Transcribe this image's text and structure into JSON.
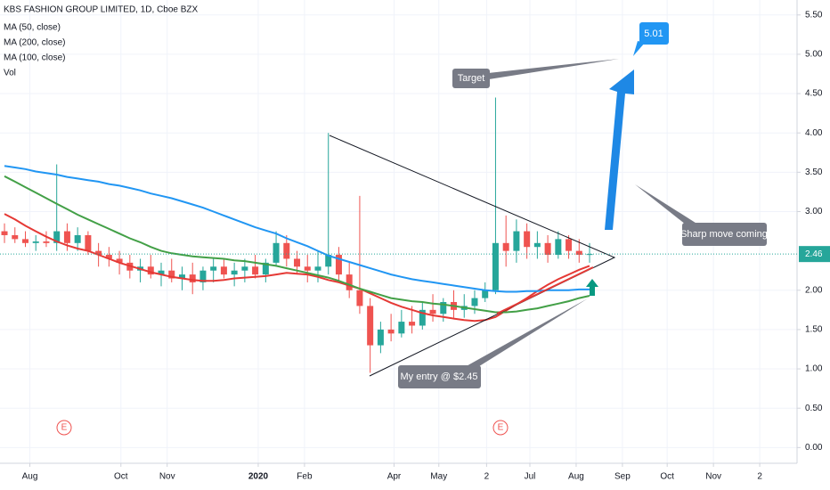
{
  "chart_data": {
    "type": "candlestick",
    "title": "KBS FASHION GROUP LIMITED, 1D, Cboe BZX",
    "indicators": [
      "MA (50, close)",
      "MA (200, close)",
      "MA (100, close)",
      "Vol"
    ],
    "x": [
      "2019-07-15",
      "2019-07-22",
      "2019-07-29",
      "2019-08-05",
      "2019-08-12",
      "2019-08-19",
      "2019-08-26",
      "2019-09-02",
      "2019-09-09",
      "2019-09-16",
      "2019-09-23",
      "2019-09-30",
      "2019-10-07",
      "2019-10-14",
      "2019-10-21",
      "2019-10-28",
      "2019-11-04",
      "2019-11-11",
      "2019-11-18",
      "2019-11-25",
      "2019-12-02",
      "2019-12-09",
      "2019-12-16",
      "2019-12-23",
      "2019-12-30",
      "2020-01-06",
      "2020-01-13",
      "2020-01-20",
      "2020-01-27",
      "2020-02-03",
      "2020-02-10",
      "2020-02-17",
      "2020-02-24",
      "2020-03-02",
      "2020-03-09",
      "2020-03-16",
      "2020-03-23",
      "2020-03-30",
      "2020-04-06",
      "2020-04-13",
      "2020-04-20",
      "2020-04-27",
      "2020-05-04",
      "2020-05-11",
      "2020-05-18",
      "2020-05-25",
      "2020-06-01",
      "2020-06-08",
      "2020-06-15",
      "2020-06-22",
      "2020-06-29",
      "2020-07-06",
      "2020-07-13",
      "2020-07-20",
      "2020-07-27",
      "2020-08-03",
      "2020-08-10"
    ],
    "open": [
      2.75,
      2.7,
      2.65,
      2.6,
      2.62,
      2.6,
      2.75,
      2.6,
      2.7,
      2.5,
      2.45,
      2.4,
      2.35,
      2.25,
      2.3,
      2.2,
      2.25,
      2.15,
      2.2,
      2.1,
      2.25,
      2.3,
      2.2,
      2.25,
      2.3,
      2.2,
      2.35,
      2.6,
      2.4,
      2.3,
      2.25,
      2.3,
      2.45,
      2.2,
      2.0,
      1.8,
      1.3,
      1.5,
      1.45,
      1.6,
      1.55,
      1.75,
      1.7,
      1.85,
      1.75,
      1.8,
      1.9,
      2.0,
      2.6,
      2.5,
      2.75,
      2.55,
      2.6,
      2.45,
      2.65,
      2.5,
      2.45
    ],
    "high": [
      2.85,
      2.8,
      2.75,
      2.7,
      2.75,
      3.6,
      2.85,
      2.8,
      2.75,
      2.6,
      2.55,
      2.5,
      2.45,
      2.4,
      2.45,
      2.35,
      2.4,
      2.3,
      2.35,
      2.3,
      2.4,
      2.4,
      2.35,
      2.4,
      2.45,
      2.4,
      2.75,
      2.7,
      2.5,
      2.45,
      2.5,
      4.0,
      2.55,
      2.35,
      3.2,
      1.9,
      1.6,
      1.7,
      1.75,
      1.8,
      1.85,
      1.95,
      1.9,
      2.0,
      1.95,
      2.0,
      2.1,
      4.45,
      2.95,
      2.9,
      2.85,
      2.75,
      2.7,
      2.75,
      2.7,
      2.65,
      2.6
    ],
    "low": [
      2.6,
      2.6,
      2.55,
      2.5,
      2.55,
      2.5,
      2.5,
      2.5,
      2.45,
      2.3,
      2.3,
      2.2,
      2.15,
      2.1,
      2.15,
      2.05,
      2.1,
      2.0,
      1.95,
      2.0,
      2.1,
      2.15,
      2.05,
      2.1,
      2.15,
      2.1,
      2.3,
      2.3,
      2.2,
      2.1,
      2.1,
      2.2,
      2.1,
      1.9,
      1.7,
      0.95,
      1.2,
      1.35,
      1.4,
      1.45,
      1.5,
      1.6,
      1.6,
      1.65,
      1.65,
      1.7,
      1.85,
      1.95,
      2.3,
      2.35,
      2.4,
      2.4,
      2.35,
      2.4,
      2.4,
      2.35,
      2.35
    ],
    "close": [
      2.7,
      2.65,
      2.6,
      2.62,
      2.6,
      2.75,
      2.6,
      2.7,
      2.5,
      2.45,
      2.4,
      2.35,
      2.25,
      2.3,
      2.2,
      2.25,
      2.15,
      2.2,
      2.1,
      2.25,
      2.3,
      2.2,
      2.25,
      2.3,
      2.2,
      2.35,
      2.6,
      2.4,
      2.3,
      2.25,
      2.3,
      2.45,
      2.2,
      2.0,
      1.8,
      1.3,
      1.5,
      1.45,
      1.6,
      1.55,
      1.75,
      1.7,
      1.85,
      1.75,
      1.8,
      1.9,
      2.0,
      2.6,
      2.5,
      2.75,
      2.55,
      2.6,
      2.45,
      2.65,
      2.5,
      2.45,
      2.46
    ],
    "up_color": "#26a69a",
    "down_color": "#ef5350",
    "series": [
      {
        "name": "MA (50, close)",
        "color": "#e53935",
        "values": [
          2.97,
          2.9,
          2.82,
          2.75,
          2.68,
          2.62,
          2.57,
          2.53,
          2.5,
          2.45,
          2.4,
          2.35,
          2.31,
          2.27,
          2.23,
          2.2,
          2.17,
          2.15,
          2.13,
          2.12,
          2.12,
          2.13,
          2.15,
          2.16,
          2.17,
          2.18,
          2.2,
          2.22,
          2.21,
          2.2,
          2.17,
          2.13,
          2.1,
          2.06,
          2.02,
          1.96,
          1.9,
          1.84,
          1.79,
          1.75,
          1.71,
          1.68,
          1.66,
          1.64,
          1.62,
          1.61,
          1.62,
          1.66,
          1.74,
          1.82,
          1.9,
          1.99,
          2.07,
          2.14,
          2.2,
          2.26,
          2.31
        ]
      },
      {
        "name": "MA (200, close)",
        "color": "#2196f3",
        "values": [
          3.58,
          3.56,
          3.54,
          3.51,
          3.49,
          3.47,
          3.44,
          3.42,
          3.4,
          3.38,
          3.35,
          3.33,
          3.3,
          3.27,
          3.23,
          3.2,
          3.17,
          3.13,
          3.09,
          3.05,
          3.0,
          2.95,
          2.9,
          2.85,
          2.8,
          2.76,
          2.72,
          2.66,
          2.61,
          2.56,
          2.5,
          2.44,
          2.4,
          2.36,
          2.32,
          2.28,
          2.24,
          2.2,
          2.17,
          2.14,
          2.12,
          2.1,
          2.08,
          2.06,
          2.04,
          2.02,
          2.0,
          1.99,
          1.98,
          1.98,
          1.99,
          1.99,
          2.0,
          2.0,
          2.0,
          2.01,
          2.01
        ]
      },
      {
        "name": "MA (100, close)",
        "color": "#43a047",
        "values": [
          3.45,
          3.38,
          3.31,
          3.24,
          3.17,
          3.1,
          3.03,
          2.96,
          2.9,
          2.84,
          2.78,
          2.72,
          2.66,
          2.61,
          2.55,
          2.5,
          2.47,
          2.45,
          2.43,
          2.42,
          2.41,
          2.4,
          2.38,
          2.37,
          2.35,
          2.33,
          2.31,
          2.28,
          2.25,
          2.22,
          2.19,
          2.16,
          2.12,
          2.07,
          2.02,
          1.98,
          1.94,
          1.9,
          1.88,
          1.86,
          1.85,
          1.83,
          1.82,
          1.8,
          1.78,
          1.76,
          1.74,
          1.72,
          1.72,
          1.73,
          1.75,
          1.77,
          1.8,
          1.83,
          1.86,
          1.9,
          1.93
        ]
      }
    ],
    "xlim": [
      "2019-07-12",
      "2020-12-27"
    ],
    "ylim": [
      -0.2,
      5.69
    ],
    "yticks": [
      {
        "value": 0,
        "label": "0.00"
      },
      {
        "value": 0.5,
        "label": "0.50"
      },
      {
        "value": 1,
        "label": "1.00"
      },
      {
        "value": 1.5,
        "label": "1.50"
      },
      {
        "value": 2,
        "label": "2.00"
      },
      {
        "value": 3,
        "label": "3.00"
      },
      {
        "value": 3.5,
        "label": "3.50"
      },
      {
        "value": 4,
        "label": "4.00"
      },
      {
        "value": 4.5,
        "label": "4.50"
      },
      {
        "value": 5,
        "label": "5.00"
      },
      {
        "value": 5.5,
        "label": "5.50"
      }
    ],
    "xticks": [
      {
        "value": "2019-08-01",
        "label": "Aug"
      },
      {
        "value": "2019-10-01",
        "label": "Oct"
      },
      {
        "value": "2019-11-01",
        "label": "Nov"
      },
      {
        "value": "2020-01-01",
        "label": "2020"
      },
      {
        "value": "2020-02-01",
        "label": "Feb"
      },
      {
        "value": "2020-04-01",
        "label": "Apr"
      },
      {
        "value": "2020-05-01",
        "label": "May"
      },
      {
        "value": "2020-06-02",
        "label": "2"
      },
      {
        "value": "2020-07-01",
        "label": "Jul"
      },
      {
        "value": "2020-08-01",
        "label": "Aug"
      },
      {
        "value": "2020-09-01",
        "label": "Sep"
      },
      {
        "value": "2020-10-01",
        "label": "Oct"
      },
      {
        "value": "2020-11-01",
        "label": "Nov"
      },
      {
        "value": "2020-12-02",
        "label": "2"
      }
    ],
    "grid": true,
    "last_price": 2.46,
    "annotations": {
      "target": "Target",
      "target_price": "5.01",
      "sharp_move": "Sharp move coming",
      "entry": "My entry @ $2.45",
      "earnings": [
        "E",
        "E"
      ]
    }
  }
}
